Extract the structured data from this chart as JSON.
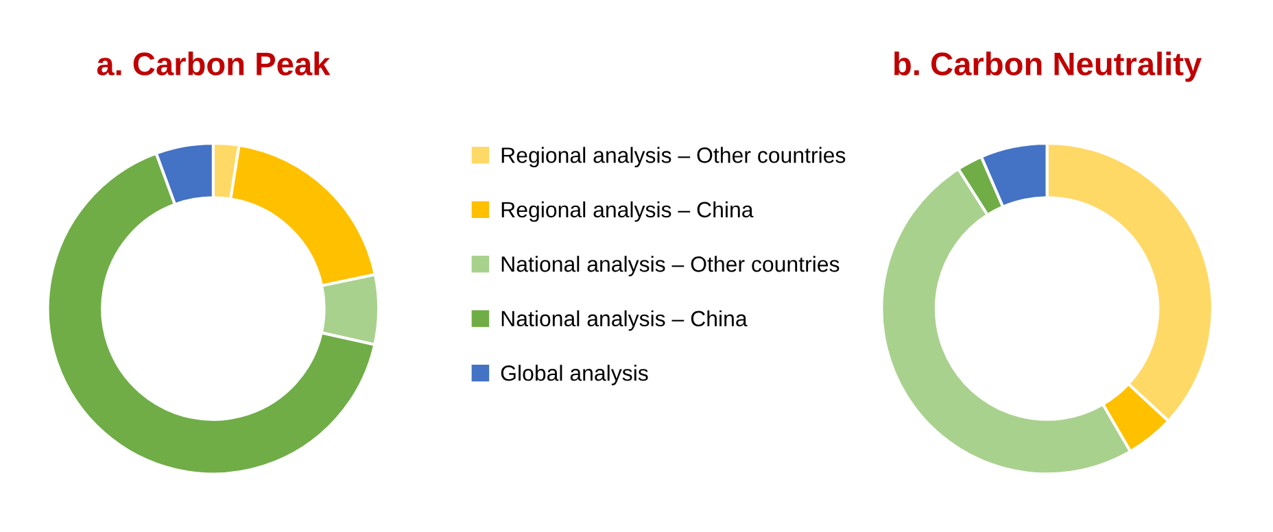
{
  "chart_data": [
    {
      "type": "donut",
      "title": "a. Carbon Peak",
      "categories": [
        "Regional analysis – Other countries",
        "Regional analysis – China",
        "National analysis – Other countries",
        "National analysis – China",
        "Global analysis"
      ],
      "values": [
        2.5,
        19.2,
        6.8,
        65.9,
        5.6
      ],
      "colors": [
        "#ffd966",
        "#ffc000",
        "#a9d18e",
        "#70ad47",
        "#4472c4"
      ],
      "legend": "right"
    },
    {
      "type": "donut",
      "title": "b. Carbon Neutrality",
      "categories": [
        null,
        null,
        null,
        null,
        null
      ],
      "values": [
        36.9,
        4.7,
        49.4,
        2.5,
        6.5
      ],
      "colors": [
        "#ffd966",
        "#ffc000",
        "#a9d18e",
        "#70ad47",
        "#4472c4"
      ]
    }
  ]
}
